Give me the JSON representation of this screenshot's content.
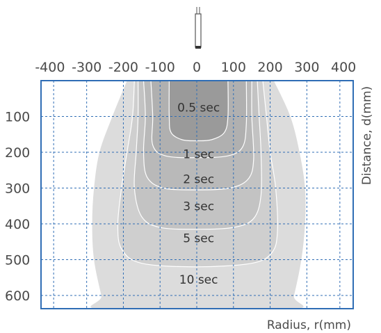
{
  "chart_data": {
    "type": "area",
    "title": "",
    "xlabel": "Radius, r(mm)",
    "ylabel": "Distance, d(mm)",
    "x_ticks": [
      "-400",
      "-300",
      "-200",
      "-100",
      "0",
      "100",
      "200",
      "300",
      "400"
    ],
    "y_ticks": [
      "100",
      "200",
      "300",
      "400",
      "500",
      "600"
    ],
    "xlim": [
      -430,
      430
    ],
    "ylim": [
      0,
      640
    ],
    "y_inverted": true,
    "grid": true,
    "legend": "none",
    "sensor": "probe-at-origin",
    "colors": {
      "frame": "#2f6db5",
      "grid": "#2f6db5",
      "outer_zone": "#dcdcdc",
      "zone_5": "#cfcfcf",
      "zone_3": "#c3c3c3",
      "zone_2": "#b9b9b9",
      "zone_1": "#b0b0b0",
      "zone_05": "#9a9a9a",
      "contour_line": "#ffffff"
    },
    "series": [
      {
        "name": "10 sec",
        "points": [
          [
            -190,
            0
          ],
          [
            -230,
            100
          ],
          [
            -265,
            200
          ],
          [
            -280,
            300
          ],
          [
            -285,
            400
          ],
          [
            -280,
            500
          ],
          [
            -260,
            600
          ],
          [
            -250,
            640
          ],
          [
            250,
            640
          ],
          [
            265,
            600
          ],
          [
            285,
            500
          ],
          [
            295,
            400
          ],
          [
            295,
            300
          ],
          [
            280,
            200
          ],
          [
            255,
            100
          ],
          [
            210,
            0
          ]
        ]
      },
      {
        "name": "5 sec",
        "points": [
          [
            -170,
            0
          ],
          [
            -175,
            100
          ],
          [
            -190,
            200
          ],
          [
            -205,
            300
          ],
          [
            -215,
            400
          ],
          [
            -205,
            470
          ],
          [
            -150,
            510
          ],
          [
            0,
            520
          ],
          [
            150,
            510
          ],
          [
            205,
            480
          ],
          [
            220,
            420
          ],
          [
            215,
            300
          ],
          [
            200,
            200
          ],
          [
            190,
            100
          ],
          [
            180,
            0
          ]
        ]
      },
      {
        "name": "3 sec",
        "points": [
          [
            -160,
            0
          ],
          [
            -160,
            100
          ],
          [
            -165,
            200
          ],
          [
            -170,
            300
          ],
          [
            -150,
            380
          ],
          [
            -100,
            410
          ],
          [
            0,
            415
          ],
          [
            100,
            410
          ],
          [
            155,
            385
          ],
          [
            175,
            320
          ],
          [
            175,
            200
          ],
          [
            170,
            100
          ],
          [
            165,
            0
          ]
        ]
      },
      {
        "name": "2 sec",
        "points": [
          [
            -145,
            0
          ],
          [
            -140,
            100
          ],
          [
            -145,
            200
          ],
          [
            -135,
            270
          ],
          [
            -90,
            300
          ],
          [
            0,
            305
          ],
          [
            90,
            300
          ],
          [
            140,
            275
          ],
          [
            155,
            220
          ],
          [
            150,
            100
          ],
          [
            150,
            0
          ]
        ]
      },
      {
        "name": "1 sec",
        "points": [
          [
            -125,
            0
          ],
          [
            -120,
            100
          ],
          [
            -120,
            180
          ],
          [
            -85,
            210
          ],
          [
            0,
            215
          ],
          [
            85,
            210
          ],
          [
            125,
            185
          ],
          [
            135,
            120
          ],
          [
            135,
            0
          ]
        ]
      },
      {
        "name": "0.5 sec",
        "points": [
          [
            -75,
            0
          ],
          [
            -75,
            100
          ],
          [
            -70,
            145
          ],
          [
            -40,
            165
          ],
          [
            0,
            168
          ],
          [
            40,
            165
          ],
          [
            75,
            145
          ],
          [
            85,
            100
          ],
          [
            85,
            0
          ]
        ]
      }
    ],
    "zone_labels": [
      {
        "text": "0.5 sec",
        "x": 5,
        "y": 75
      },
      {
        "text": "1 sec",
        "x": 5,
        "y": 205
      },
      {
        "text": "2 sec",
        "x": 5,
        "y": 275
      },
      {
        "text": "3 sec",
        "x": 5,
        "y": 350
      },
      {
        "text": "5 sec",
        "x": 5,
        "y": 440
      },
      {
        "text": "10 sec",
        "x": 5,
        "y": 555
      }
    ]
  }
}
